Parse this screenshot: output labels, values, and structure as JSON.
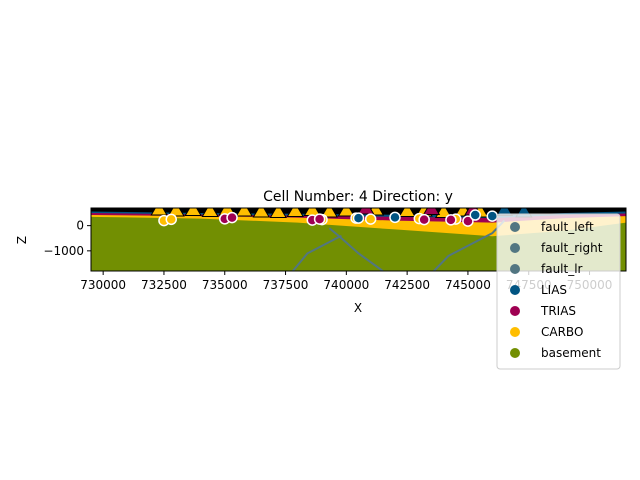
{
  "chart_data": {
    "type": "scatter",
    "title": "Cell Number: 4 Direction: y",
    "xlabel": "X",
    "ylabel": "Z",
    "xlim": [
      729500,
      751500
    ],
    "ylim": [
      -1800,
      700
    ],
    "xticks": [
      730000,
      732500,
      735000,
      737500,
      740000,
      742500,
      745000,
      747500,
      750000
    ],
    "xtick_labels": [
      "730000",
      "732500",
      "735000",
      "737500",
      "740000",
      "742500",
      "745000",
      "747500",
      "750000"
    ],
    "yticks": [
      0,
      -1000
    ],
    "ytick_labels": [
      "0",
      "−1000"
    ],
    "legend_position": "right",
    "grid": false,
    "series": [
      {
        "name": "fault_left",
        "color": "#527682",
        "kind": "fault"
      },
      {
        "name": "fault_right",
        "color": "#527682",
        "kind": "fault"
      },
      {
        "name": "fault_lr",
        "color": "#527682",
        "kind": "fault"
      },
      {
        "name": "LIAS",
        "color": "#015482",
        "kind": "layer"
      },
      {
        "name": "TRIAS",
        "color": "#9f0052",
        "kind": "layer"
      },
      {
        "name": "CARBO",
        "color": "#ffbe00",
        "kind": "layer"
      },
      {
        "name": "basement",
        "color": "#728f02",
        "kind": "layer"
      }
    ],
    "points": {
      "CARBO": [
        [
          732500,
          200
        ],
        [
          732800,
          250
        ],
        [
          739000,
          240
        ],
        [
          740400,
          300
        ],
        [
          741000,
          260
        ],
        [
          743000,
          280
        ],
        [
          744500,
          260
        ]
      ],
      "TRIAS": [
        [
          735000,
          270
        ],
        [
          735300,
          320
        ],
        [
          738600,
          220
        ],
        [
          738900,
          260
        ],
        [
          743200,
          240
        ],
        [
          744300,
          230
        ],
        [
          745000,
          180
        ]
      ],
      "LIAS": [
        [
          740500,
          300
        ],
        [
          742000,
          330
        ],
        [
          745300,
          420
        ],
        [
          746000,
          380
        ]
      ]
    },
    "orientations": {
      "CARBO": [
        [
          732300,
          600
        ],
        [
          733000,
          560
        ],
        [
          733700,
          580
        ],
        [
          734400,
          540
        ],
        [
          735100,
          600
        ],
        [
          735800,
          560
        ],
        [
          736500,
          520
        ],
        [
          737200,
          500
        ],
        [
          737900,
          540
        ],
        [
          738600,
          580
        ],
        [
          739300,
          520
        ],
        [
          740000,
          560
        ],
        [
          741200,
          600
        ],
        [
          742500,
          540
        ],
        [
          743200,
          560
        ],
        [
          744000,
          500
        ],
        [
          744800,
          560
        ],
        [
          745500,
          520
        ]
      ],
      "TRIAS": [
        [
          740800,
          640
        ],
        [
          743500,
          620
        ],
        [
          745200,
          600
        ]
      ],
      "LIAS": [
        [
          746500,
          580
        ],
        [
          747300,
          520
        ]
      ]
    },
    "faults": {
      "fault_left": [
        [
          741500,
          -1800
        ],
        [
          740500,
          -1100
        ],
        [
          739800,
          -500
        ],
        [
          739300,
          -100
        ]
      ],
      "fault_right": [
        [
          743600,
          -1800
        ],
        [
          744200,
          -1200
        ],
        [
          745200,
          -700
        ],
        [
          746000,
          -300
        ],
        [
          746500,
          200
        ]
      ],
      "fault_lr": [
        [
          737800,
          -1800
        ],
        [
          738400,
          -1100
        ],
        [
          739800,
          -400
        ]
      ]
    },
    "surfaces": {
      "basement_top": [
        [
          729500,
          350
        ],
        [
          734000,
          280
        ],
        [
          738000,
          120
        ],
        [
          742000,
          -150
        ],
        [
          746000,
          -420
        ],
        [
          749000,
          -200
        ],
        [
          751500,
          120
        ]
      ],
      "carbo_top": [
        [
          729500,
          420
        ],
        [
          734000,
          380
        ],
        [
          738000,
          320
        ],
        [
          742000,
          200
        ],
        [
          746000,
          120
        ],
        [
          749000,
          300
        ],
        [
          751500,
          380
        ]
      ],
      "trias_top": [
        [
          729500,
          500
        ],
        [
          734000,
          440
        ],
        [
          738000,
          400
        ],
        [
          742000,
          350
        ],
        [
          746000,
          300
        ],
        [
          749000,
          420
        ],
        [
          751500,
          480
        ]
      ],
      "lias_top": [
        [
          729500,
          560
        ],
        [
          734000,
          500
        ],
        [
          738000,
          470
        ],
        [
          742000,
          430
        ],
        [
          746000,
          400
        ],
        [
          749000,
          500
        ],
        [
          751500,
          560
        ]
      ]
    }
  }
}
